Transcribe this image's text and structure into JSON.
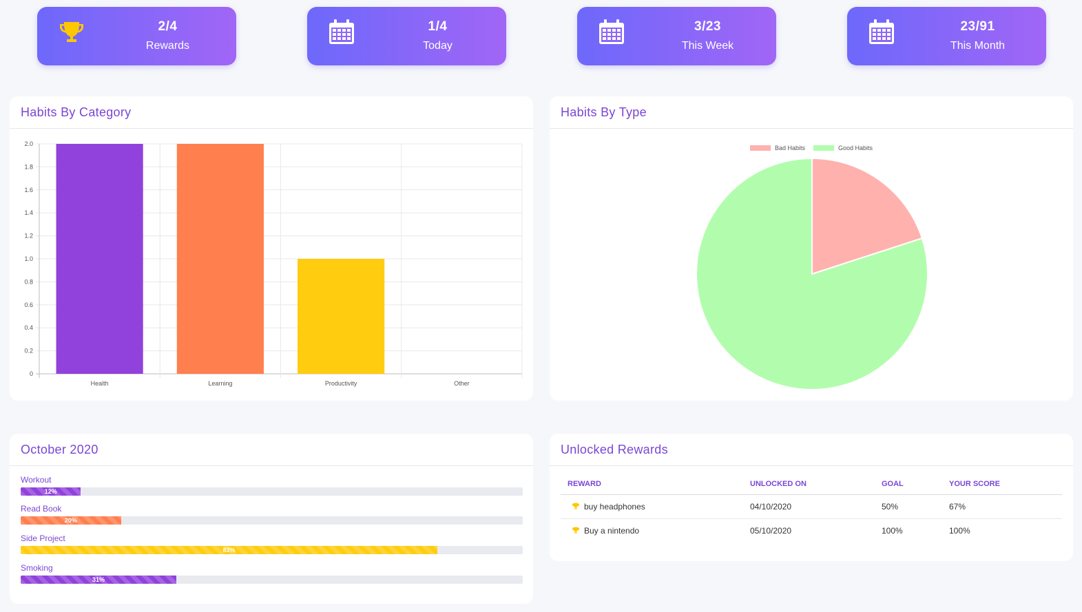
{
  "stats": [
    {
      "value": "2/4",
      "label": "Rewards",
      "icon": "trophy-icon"
    },
    {
      "value": "1/4",
      "label": "Today",
      "icon": "calendar-icon"
    },
    {
      "value": "3/23",
      "label": "This Week",
      "icon": "calendar-icon"
    },
    {
      "value": "23/91",
      "label": "This Month",
      "icon": "calendar-icon"
    }
  ],
  "panels": {
    "category_title": "Habits By Category",
    "type_title": "Habits By Type",
    "month_title": "October 2020",
    "rewards_title": "Unlocked Rewards"
  },
  "colors": {
    "accent": "#7a46d4",
    "card_gradient_start": "#6d68fb",
    "card_gradient_end": "#a166f6",
    "trophy": "#ffc700"
  },
  "chart_data": [
    {
      "type": "bar",
      "categories": [
        "Health",
        "Learning",
        "Productivity",
        "Other"
      ],
      "values": [
        2,
        2,
        1,
        0
      ],
      "colors": [
        "#9142dc",
        "#ff7f4e",
        "#ffcc0f",
        "#cccccc"
      ],
      "ylim": [
        0,
        2
      ],
      "yticks": [
        "2.0",
        "1.8",
        "1.6",
        "1.4",
        "1.2",
        "1.0",
        "0.8",
        "0.6",
        "0.4",
        "0.2",
        "0"
      ],
      "grid": true
    },
    {
      "type": "pie",
      "labels": [
        "Bad Habits",
        "Good Habits"
      ],
      "values": [
        1,
        4
      ],
      "colors": [
        "#ffb1ae",
        "#b2fdad"
      ],
      "legend": "top"
    }
  ],
  "progress": [
    {
      "label": "Workout",
      "percent": 12,
      "text": "12%",
      "color": "#9142dc"
    },
    {
      "label": "Read Book",
      "percent": 20,
      "text": "20%",
      "color": "#ff7f4e"
    },
    {
      "label": "Side Project",
      "percent": 83,
      "text": "83%",
      "color": "#ffcc0f"
    },
    {
      "label": "Smoking",
      "percent": 31,
      "text": "31%",
      "color": "#9142dc"
    }
  ],
  "rewards_table": {
    "headers": [
      "REWARD",
      "UNLOCKED ON",
      "GOAL",
      "YOUR SCORE"
    ],
    "rows": [
      {
        "reward": "buy headphones",
        "unlocked_on": "04/10/2020",
        "goal": "50%",
        "score": "67%"
      },
      {
        "reward": "Buy a nintendo",
        "unlocked_on": "05/10/2020",
        "goal": "100%",
        "score": "100%"
      }
    ]
  }
}
